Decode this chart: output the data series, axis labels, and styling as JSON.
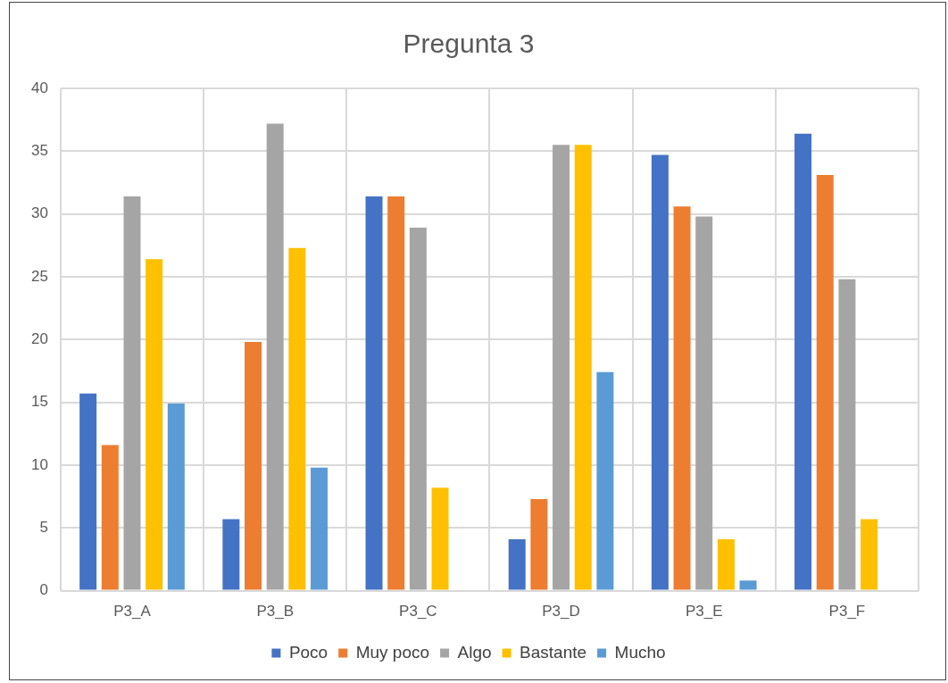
{
  "chart_data": {
    "type": "bar",
    "title": "Pregunta 3",
    "categories": [
      "P3_A",
      "P3_B",
      "P3_C",
      "P3_D",
      "P3_E",
      "P3_F"
    ],
    "series": [
      {
        "name": "Poco",
        "color": "#4472c4",
        "values": [
          15.7,
          5.7,
          31.4,
          4.1,
          34.7,
          36.4
        ]
      },
      {
        "name": "Muy poco",
        "color": "#ed7d31",
        "values": [
          11.6,
          19.8,
          31.4,
          7.3,
          30.6,
          33.1
        ]
      },
      {
        "name": "Algo",
        "color": "#a5a5a5",
        "values": [
          31.4,
          37.2,
          28.9,
          35.5,
          29.8,
          24.8
        ]
      },
      {
        "name": "Bastante",
        "color": "#ffc000",
        "values": [
          26.4,
          27.3,
          8.2,
          35.5,
          4.1,
          5.7
        ]
      },
      {
        "name": "Mucho",
        "color": "#5b9bd5",
        "values": [
          14.9,
          9.8,
          null,
          17.4,
          0.8,
          null
        ]
      }
    ],
    "ylim": [
      0,
      40
    ],
    "yticks": [
      0,
      5,
      10,
      15,
      20,
      25,
      30,
      35,
      40
    ],
    "grid": true,
    "legend": "bottom"
  }
}
